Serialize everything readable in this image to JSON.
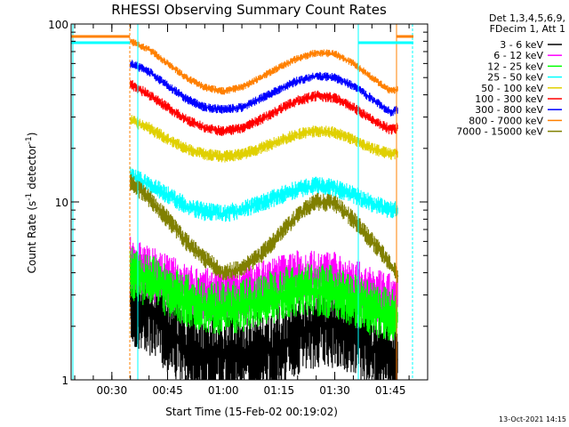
{
  "chart_data": {
    "type": "line",
    "title": "RHESSI Observing Summary Count Rates",
    "xlabel": "Start Time (15-Feb-02 00:19:02)",
    "ylabel": "Count Rate (s",
    "ylabel_sup1": "-1",
    "ylabel_mid": " detector",
    "ylabel_sup2": "-1",
    "ylabel_end": ")",
    "yscale": "log",
    "ylim": [
      1,
      100
    ],
    "xlim": [
      "00:19:02",
      "01:55:00"
    ],
    "x_ticks": [
      "00:30",
      "00:45",
      "01:00",
      "01:15",
      "01:30",
      "01:45"
    ],
    "y_ticks": [
      "1",
      "10",
      "100"
    ],
    "legend_header": [
      "Det 1,3,4,5,6,9,",
      "FDecim 1, Att 1"
    ],
    "legend_position": "right",
    "timestamp": "13-Oct-2021 14:15",
    "series": [
      {
        "name": "3 - 6 keV",
        "color": "#000000",
        "x": [
          "00:35",
          "00:40",
          "00:45",
          "00:50",
          "00:55",
          "01:00",
          "01:05",
          "01:10",
          "01:15",
          "01:20",
          "01:25",
          "01:30",
          "01:35",
          "01:40",
          "01:45",
          "01:47"
        ],
        "values": [
          2.6,
          2.4,
          1.9,
          1.5,
          1.4,
          1.4,
          1.4,
          1.4,
          1.5,
          1.8,
          2.0,
          2.0,
          1.8,
          1.5,
          1.3,
          1.3
        ]
      },
      {
        "name": "6 - 12 keV",
        "color": "#ff00ff",
        "x": [
          "00:35",
          "00:40",
          "00:45",
          "00:50",
          "00:55",
          "01:00",
          "01:05",
          "01:10",
          "01:15",
          "01:20",
          "01:25",
          "01:30",
          "01:35",
          "01:40",
          "01:45",
          "01:47"
        ],
        "values": [
          4.5,
          4.0,
          3.6,
          3.2,
          3.0,
          3.0,
          3.1,
          3.3,
          3.6,
          3.8,
          3.8,
          3.7,
          3.4,
          3.0,
          2.8,
          2.8
        ]
      },
      {
        "name": "12 - 25 keV",
        "color": "#00ff00",
        "x": [
          "00:35",
          "00:40",
          "00:45",
          "00:50",
          "00:55",
          "01:00",
          "01:05",
          "01:10",
          "01:15",
          "01:20",
          "01:25",
          "01:30",
          "01:35",
          "01:40",
          "01:45",
          "01:47"
        ],
        "values": [
          4.0,
          3.6,
          3.2,
          2.8,
          2.6,
          2.5,
          2.6,
          2.8,
          3.0,
          3.2,
          3.2,
          3.1,
          2.8,
          2.5,
          2.3,
          2.3
        ]
      },
      {
        "name": "25 - 50 keV",
        "color": "#00ffff",
        "x": [
          "00:35",
          "00:40",
          "00:45",
          "00:50",
          "00:55",
          "01:00",
          "01:05",
          "01:10",
          "01:15",
          "01:20",
          "01:25",
          "01:30",
          "01:35",
          "01:40",
          "01:45",
          "01:47"
        ],
        "values": [
          14.0,
          12.5,
          11.0,
          9.5,
          8.8,
          8.6,
          9.0,
          9.8,
          10.8,
          11.8,
          12.3,
          12.0,
          11.0,
          9.8,
          9.0,
          9.2
        ]
      },
      {
        "name": "50 - 100 keV",
        "color": "#e0d000",
        "x": [
          "00:35",
          "00:40",
          "00:45",
          "00:50",
          "00:55",
          "01:00",
          "01:05",
          "01:10",
          "01:15",
          "01:20",
          "01:25",
          "01:30",
          "01:35",
          "01:40",
          "01:45",
          "01:47"
        ],
        "values": [
          29.0,
          26.0,
          22.5,
          20.0,
          18.5,
          18.0,
          18.5,
          20.0,
          22.0,
          24.0,
          25.0,
          24.5,
          22.5,
          20.0,
          18.5,
          19.0
        ]
      },
      {
        "name": "100 - 300 keV",
        "color": "#ff0000",
        "x": [
          "00:35",
          "00:40",
          "00:45",
          "00:50",
          "00:55",
          "01:00",
          "01:05",
          "01:10",
          "01:15",
          "01:20",
          "01:25",
          "01:30",
          "01:35",
          "01:40",
          "01:45",
          "01:47"
        ],
        "values": [
          46.0,
          40.0,
          34.0,
          29.0,
          26.0,
          25.0,
          26.0,
          29.0,
          33.0,
          37.0,
          39.5,
          38.5,
          34.0,
          29.0,
          25.5,
          26.0
        ]
      },
      {
        "name": "300 - 800 keV",
        "color": "#0000ff",
        "x": [
          "00:35",
          "00:40",
          "00:45",
          "00:50",
          "00:55",
          "01:00",
          "01:05",
          "01:10",
          "01:15",
          "01:20",
          "01:25",
          "01:30",
          "01:35",
          "01:40",
          "01:45",
          "01:47"
        ],
        "values": [
          60.0,
          54.0,
          45.0,
          38.0,
          34.0,
          33.0,
          34.0,
          38.0,
          43.0,
          48.0,
          51.0,
          50.0,
          45.0,
          38.0,
          32.0,
          33.0
        ]
      },
      {
        "name": "800 - 7000 keV",
        "color": "#ff8000",
        "x": [
          "00:35",
          "00:40",
          "00:45",
          "00:50",
          "00:55",
          "01:00",
          "01:05",
          "01:10",
          "01:15",
          "01:20",
          "01:25",
          "01:30",
          "01:35",
          "01:40",
          "01:45",
          "01:47"
        ],
        "values": [
          80.0,
          72.0,
          60.0,
          50.0,
          44.0,
          42.0,
          44.0,
          50.0,
          57.0,
          64.0,
          69.0,
          68.0,
          60.0,
          50.0,
          42.0,
          43.0
        ]
      },
      {
        "name": "7000 - 15000 keV",
        "color": "#808000",
        "x": [
          "00:35",
          "00:40",
          "00:45",
          "00:50",
          "00:55",
          "01:00",
          "01:05",
          "01:10",
          "01:15",
          "01:20",
          "01:25",
          "01:30",
          "01:35",
          "01:40",
          "01:45",
          "01:47"
        ],
        "values": [
          13.0,
          10.5,
          8.0,
          6.0,
          4.8,
          4.0,
          4.2,
          5.0,
          6.5,
          8.5,
          10.0,
          9.8,
          8.0,
          6.0,
          4.5,
          3.8
        ]
      }
    ]
  }
}
